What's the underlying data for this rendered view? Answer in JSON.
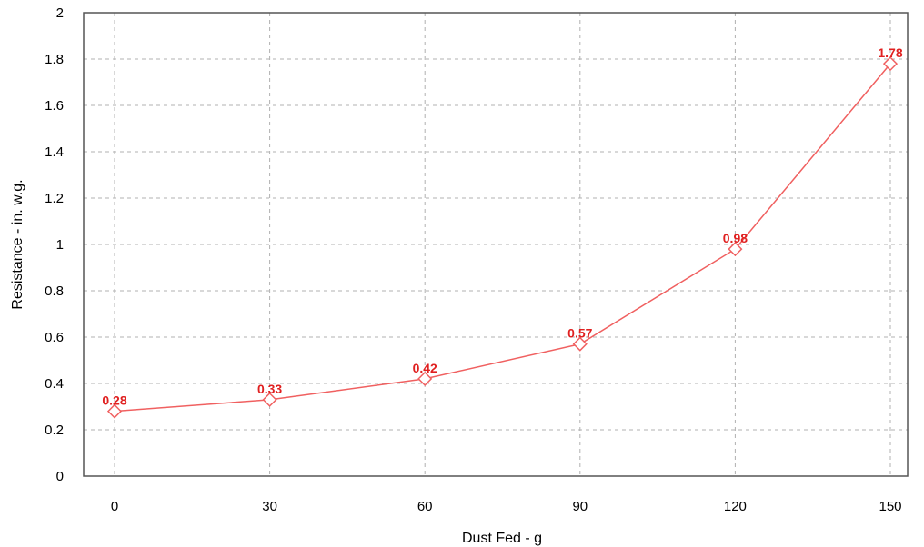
{
  "chart_data": {
    "type": "line",
    "title": "",
    "xlabel": "Dust Fed - g",
    "ylabel": "Resistance - in. w.g.",
    "x": [
      0,
      30,
      60,
      90,
      120,
      150
    ],
    "x_tick_labels": [
      "0",
      "30",
      "60",
      "90",
      "120",
      "150"
    ],
    "y_tick_labels": [
      "0",
      "0.2",
      "0.4",
      "0.6",
      "0.8",
      "1",
      "1.2",
      "1.4",
      "1.6",
      "1.8",
      "2"
    ],
    "ylim": [
      0,
      2
    ],
    "grid": true,
    "legend": "none",
    "series": [
      {
        "values": [
          0.28,
          0.33,
          0.42,
          0.57,
          0.98,
          1.78
        ],
        "data_labels": [
          "0.28",
          "0.33",
          "0.42",
          "0.57",
          "0.98",
          "1.78"
        ],
        "color": "#f06060",
        "label_color": "#e02020",
        "marker": "diamond"
      }
    ]
  }
}
